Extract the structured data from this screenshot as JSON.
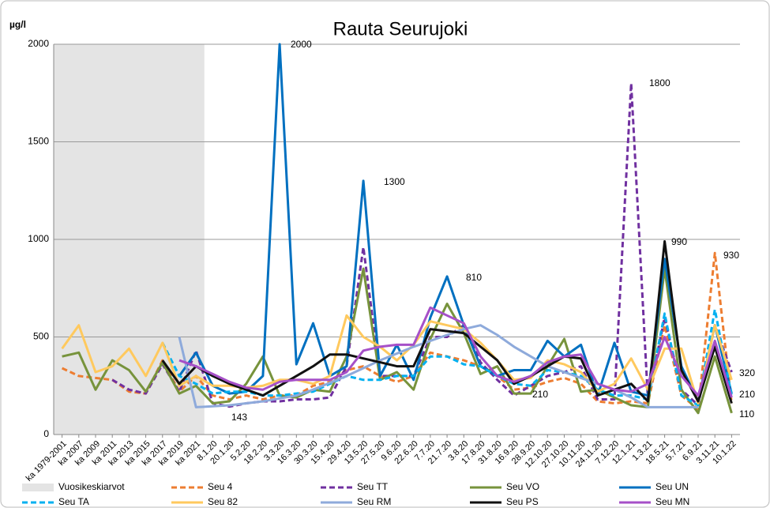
{
  "chart_data": {
    "type": "line",
    "title": "Rauta Seurujoki",
    "ylabel": "µg/l",
    "categories": [
      "ka 1979-2001",
      "ka 2007",
      "ka 2009",
      "ka 2011",
      "ka 2013",
      "ka 2015",
      "ka 2017",
      "ka 2019",
      "ka 2021",
      "8.1.20",
      "20.1.20",
      "5.2.20",
      "18.2.20",
      "3.3.20",
      "16.3.20",
      "30.3.20",
      "15.4.20",
      "29.4.20",
      "13.5.20",
      "27.5.20",
      "9.6.20",
      "22.6.20",
      "7.7.20",
      "21.7.20",
      "3.8.20",
      "17.8.20",
      "31.8.20",
      "16.9.20",
      "28.9.20",
      "12.10.20",
      "27.10.20",
      "10.11.20",
      "24.11.20",
      "7.12.20",
      "12.1.21",
      "1.3.21",
      "18.5.21",
      "5.7.21",
      "6.9.21",
      "3.11.21",
      "10.1.22"
    ],
    "ylim": [
      0,
      2000
    ],
    "yticks": [
      0,
      500,
      1000,
      1500,
      2000
    ],
    "grid": true,
    "band": {
      "name": "Vuosikeskiarvot",
      "color": "#e4e4e4",
      "span": [
        "ka 1979-2001",
        "ka 2021"
      ]
    },
    "series": [
      {
        "name": "Seu 4",
        "color": "#ed7d31",
        "dash": true,
        "values": [
          340,
          300,
          290,
          280,
          220,
          210,
          380,
          220,
          300,
          200,
          180,
          200,
          180,
          200,
          200,
          250,
          270,
          330,
          350,
          300,
          270,
          300,
          420,
          400,
          380,
          350,
          300,
          230,
          240,
          270,
          290,
          260,
          170,
          160,
          170,
          160,
          560,
          200,
          130,
          930,
          160
        ]
      },
      {
        "name": "Seu TT",
        "color": "#7030a0",
        "dash": true,
        "values": [
          null,
          null,
          null,
          280,
          230,
          210,
          360,
          220,
          430,
          160,
          143,
          160,
          170,
          170,
          180,
          180,
          190,
          350,
          960,
          300,
          300,
          300,
          500,
          500,
          560,
          370,
          280,
          200,
          250,
          300,
          320,
          350,
          180,
          180,
          1800,
          180,
          600,
          230,
          150,
          560,
          320
        ]
      },
      {
        "name": "Seu VO",
        "color": "#77933c",
        "dash": false,
        "values": [
          400,
          420,
          230,
          380,
          330,
          220,
          370,
          210,
          250,
          160,
          170,
          260,
          400,
          200,
          190,
          230,
          220,
          400,
          850,
          280,
          320,
          230,
          490,
          670,
          520,
          310,
          350,
          210,
          210,
          350,
          490,
          220,
          230,
          190,
          150,
          140,
          850,
          230,
          110,
          400,
          110
        ]
      },
      {
        "name": "Seu UN",
        "color": "#0070c0",
        "dash": false,
        "values": [
          null,
          null,
          null,
          null,
          null,
          null,
          null,
          300,
          420,
          250,
          210,
          220,
          300,
          2000,
          360,
          570,
          300,
          350,
          1300,
          300,
          460,
          280,
          600,
          810,
          560,
          350,
          300,
          330,
          330,
          480,
          400,
          460,
          200,
          470,
          220,
          200,
          900,
          350,
          170,
          560,
          210
        ]
      },
      {
        "name": "Seu TA",
        "color": "#00b0f0",
        "dash": true,
        "values": [
          null,
          null,
          null,
          null,
          null,
          null,
          470,
          300,
          260,
          210,
          220,
          220,
          200,
          200,
          210,
          220,
          260,
          300,
          280,
          280,
          300,
          300,
          400,
          400,
          360,
          350,
          300,
          260,
          250,
          330,
          320,
          300,
          230,
          200,
          200,
          180,
          620,
          200,
          150,
          640,
          200
        ]
      },
      {
        "name": "Seu 82",
        "color": "#ffc95e",
        "dash": false,
        "values": [
          440,
          560,
          320,
          350,
          440,
          300,
          470,
          250,
          300,
          250,
          250,
          240,
          250,
          280,
          280,
          260,
          300,
          610,
          500,
          450,
          380,
          460,
          580,
          560,
          540,
          470,
          380,
          280,
          290,
          380,
          360,
          320,
          220,
          260,
          390,
          230,
          440,
          440,
          160,
          560,
          280
        ]
      },
      {
        "name": "Seu RM",
        "color": "#8eaadb",
        "dash": false,
        "values": [
          null,
          null,
          null,
          null,
          null,
          null,
          null,
          500,
          140,
          145,
          150,
          160,
          170,
          185,
          200,
          230,
          265,
          300,
          340,
          380,
          415,
          450,
          480,
          510,
          540,
          560,
          510,
          450,
          400,
          350,
          320,
          290,
          260,
          230,
          190,
          140,
          140,
          140,
          140,
          null,
          null
        ]
      },
      {
        "name": "Seu PS",
        "color": "#111111",
        "dash": false,
        "values": [
          null,
          null,
          null,
          null,
          null,
          null,
          380,
          260,
          350,
          300,
          260,
          230,
          200,
          250,
          300,
          350,
          410,
          410,
          390,
          370,
          350,
          350,
          540,
          530,
          520,
          450,
          380,
          260,
          300,
          350,
          400,
          390,
          200,
          230,
          260,
          170,
          990,
          330,
          170,
          450,
          160
        ]
      },
      {
        "name": "Seu MN",
        "color": "#a650c8",
        "dash": false,
        "values": [
          null,
          null,
          null,
          null,
          null,
          null,
          null,
          380,
          350,
          310,
          270,
          240,
          230,
          270,
          280,
          280,
          280,
          320,
          430,
          450,
          460,
          460,
          650,
          610,
          570,
          400,
          300,
          270,
          300,
          370,
          400,
          410,
          260,
          230,
          220,
          260,
          500,
          300,
          200,
          480,
          190
        ]
      }
    ],
    "annotations": [
      "2000",
      "1300",
      "810",
      "1800",
      "990",
      "930",
      "320",
      "210",
      "110",
      "143",
      "210"
    ]
  }
}
